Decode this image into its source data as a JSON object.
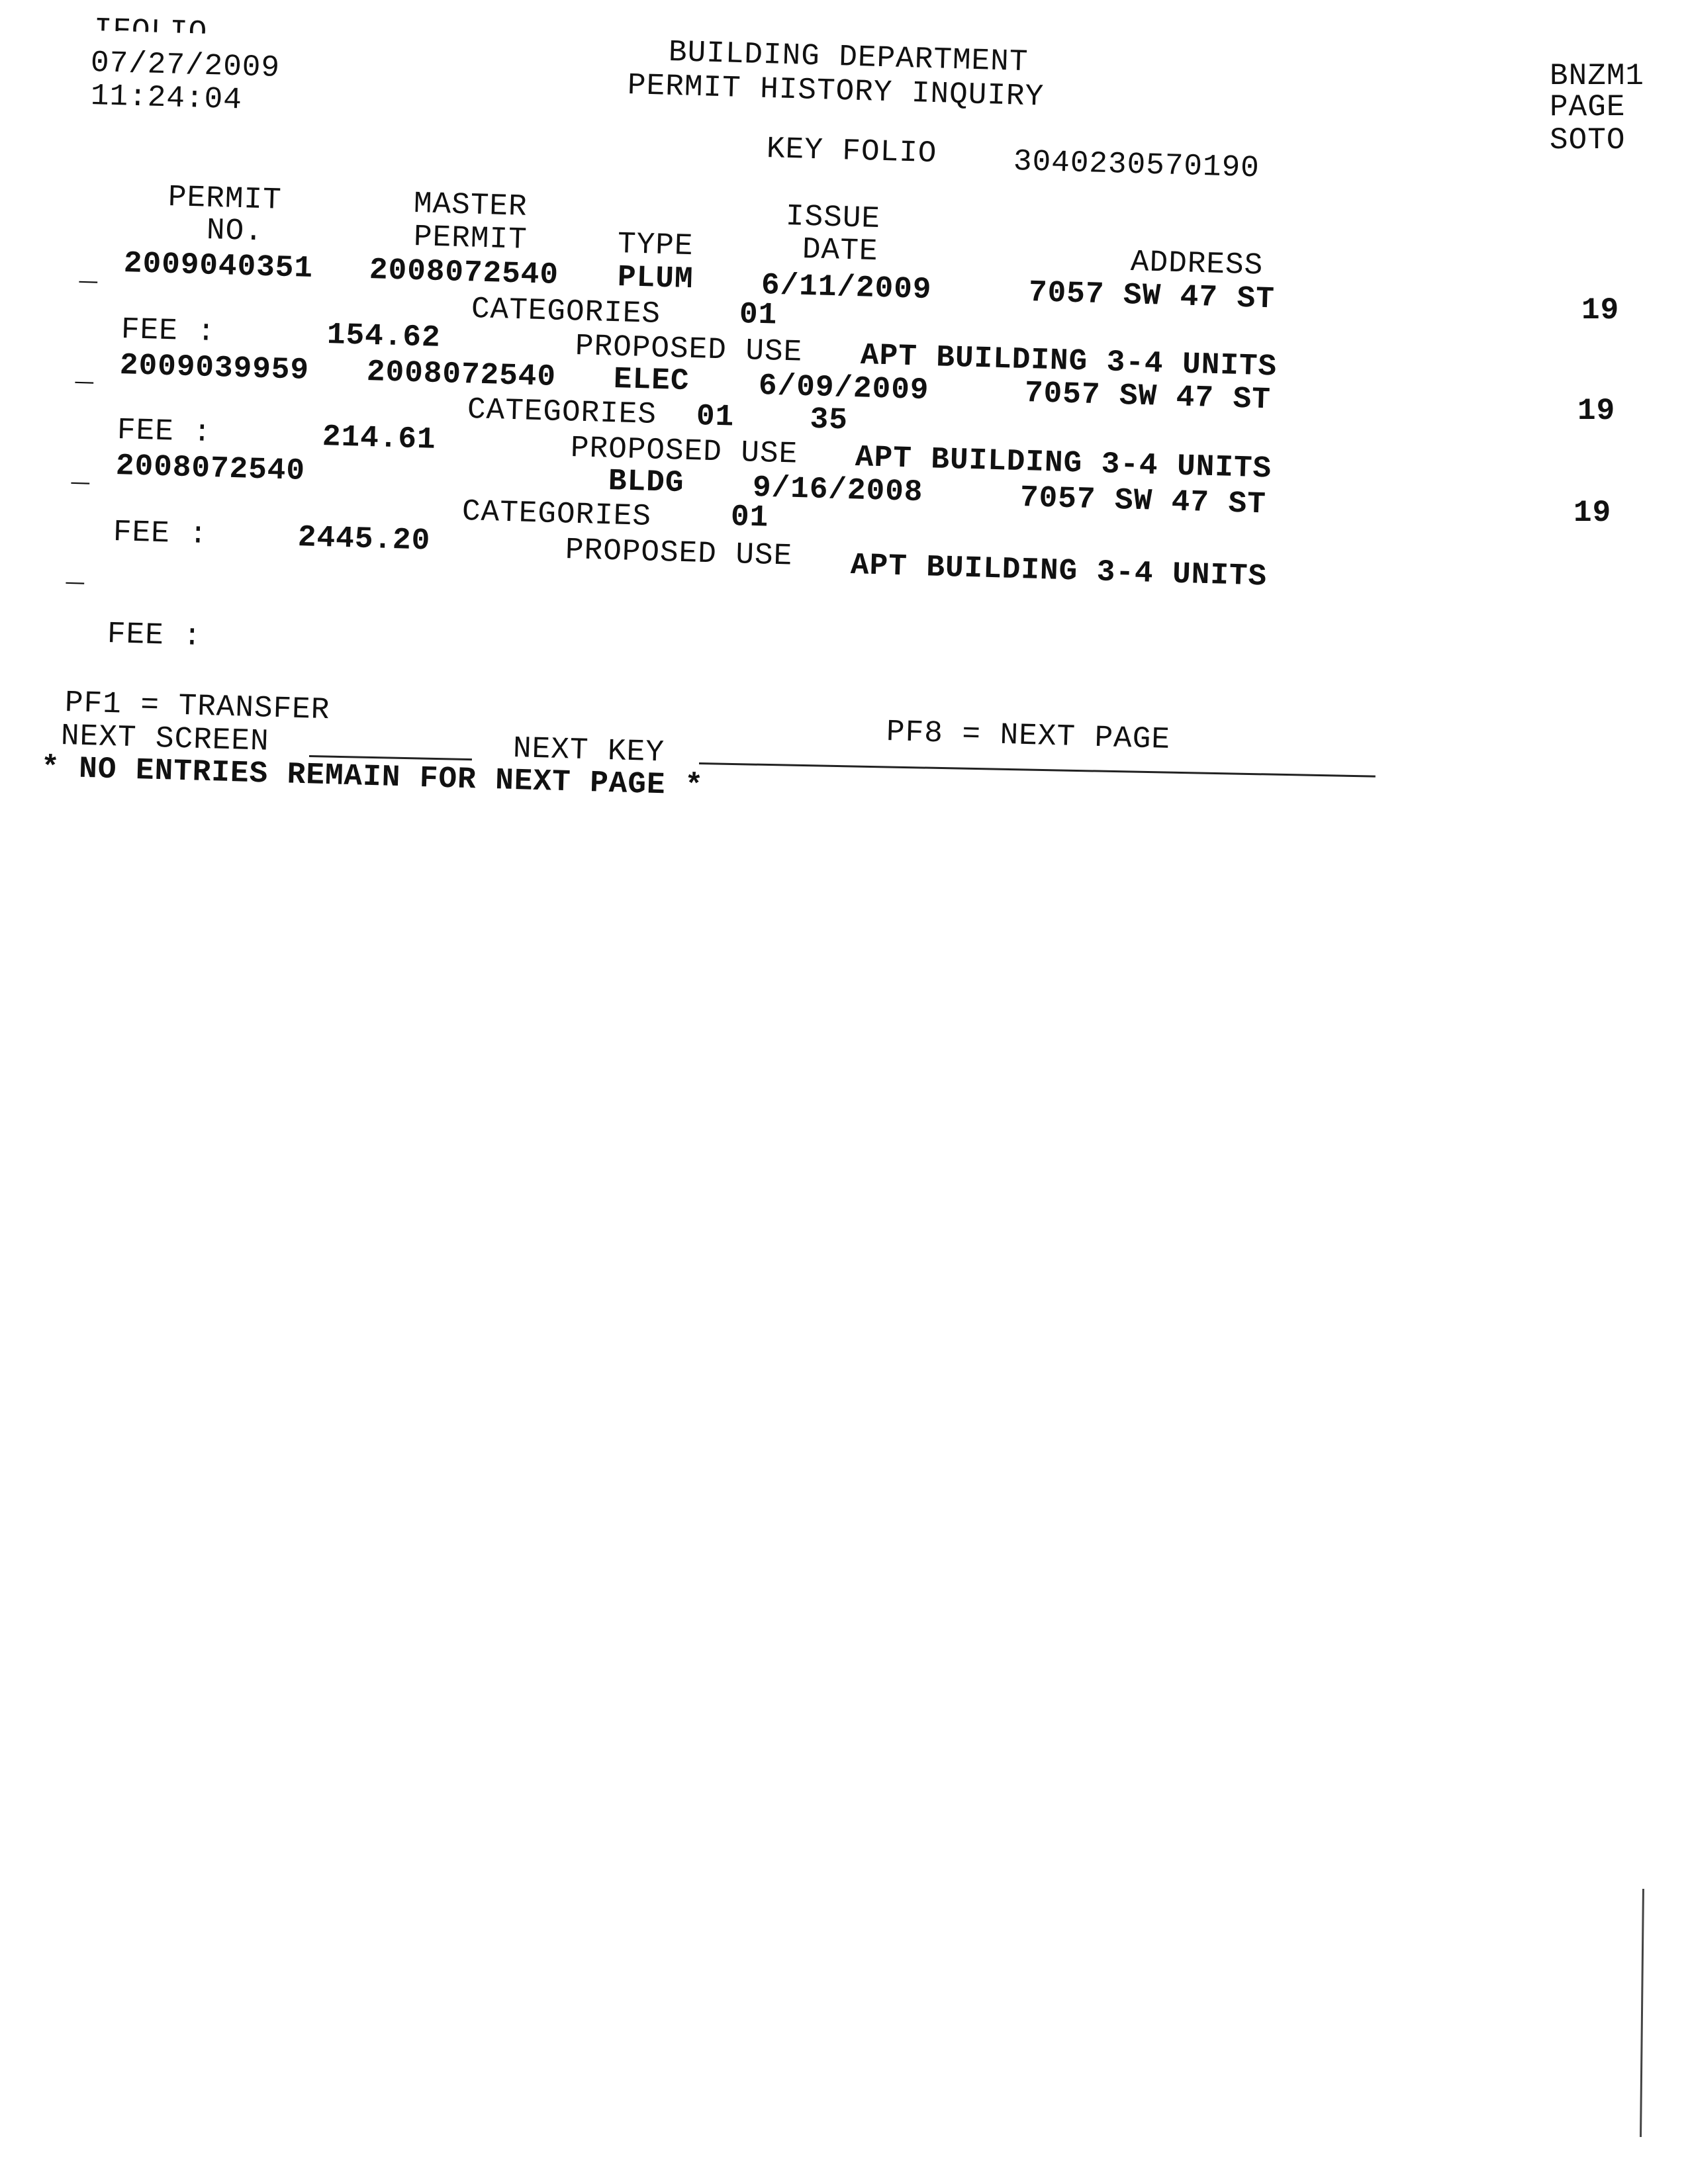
{
  "header": {
    "clipped_top": "IFOLIO",
    "date": "07/27/2009",
    "time": "11:24:04",
    "title": "BUILDING DEPARTMENT",
    "subtitle": "PERMIT HISTORY INQUIRY",
    "screen_id": "BNZM1",
    "page_label": "PAGE",
    "user": "SOTO",
    "key_folio_label": "KEY FOLIO",
    "key_folio": "3040230570190"
  },
  "columns": {
    "permit_1": "PERMIT",
    "permit_2": "NO.",
    "master_1": "MASTER",
    "master_2": "PERMIT",
    "type": "TYPE",
    "issue_1": "ISSUE",
    "issue_2": "DATE",
    "address": "ADDRESS"
  },
  "labels": {
    "select": "_",
    "categories": "CATEGORIES",
    "fee": "FEE :",
    "proposed_use": "PROPOSED USE"
  },
  "rows": [
    {
      "permit": "2009040351",
      "master": "2008072540",
      "type": "PLUM",
      "date": "6/11/2009",
      "address": "7057 SW 47 ST",
      "num": "19",
      "categories": "01",
      "fee": "154.62",
      "use": "APT BUILDING 3-4 UNITS"
    },
    {
      "permit": "2009039959",
      "master": "2008072540",
      "type": "ELEC",
      "date": "6/09/2009",
      "address": "7057 SW 47 ST",
      "num": "19",
      "categories": "01    35",
      "fee": "214.61",
      "use": "APT BUILDING 3-4 UNITS"
    },
    {
      "permit": "2008072540",
      "master": "",
      "type": "BLDG",
      "date": "9/16/2008",
      "address": "7057 SW 47 ST",
      "num": "19",
      "categories": "01",
      "fee": "2445.20",
      "use": "APT BUILDING 3-4 UNITS"
    }
  ],
  "footer": {
    "pf1": "PF1 = TRANSFER",
    "next_screen": "NEXT SCREEN",
    "next_key": "NEXT KEY",
    "pf8": "PF8 = NEXT PAGE",
    "message": "* NO ENTRIES REMAIN FOR NEXT PAGE *"
  }
}
